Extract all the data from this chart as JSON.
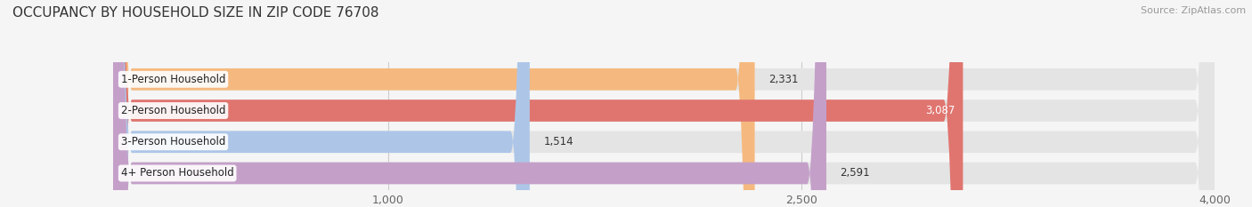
{
  "title": "OCCUPANCY BY HOUSEHOLD SIZE IN ZIP CODE 76708",
  "source": "Source: ZipAtlas.com",
  "categories": [
    "1-Person Household",
    "2-Person Household",
    "3-Person Household",
    "4+ Person Household"
  ],
  "values": [
    2331,
    3087,
    1514,
    2591
  ],
  "bar_colors": [
    "#f5b97f",
    "#e07570",
    "#adc6e8",
    "#c4a0c9"
  ],
  "value_colors": [
    "#333333",
    "#ffffff",
    "#333333",
    "#333333"
  ],
  "xlim_min": 0,
  "xlim_max": 4000,
  "xticks": [
    1000,
    2500,
    4000
  ],
  "xtick_labels": [
    "1,000",
    "2,500",
    "4,000"
  ],
  "background_color": "#f5f5f5",
  "bar_bg_color": "#e4e4e4",
  "title_fontsize": 11,
  "tick_fontsize": 9,
  "label_fontsize": 8.5,
  "value_fontsize": 8.5
}
